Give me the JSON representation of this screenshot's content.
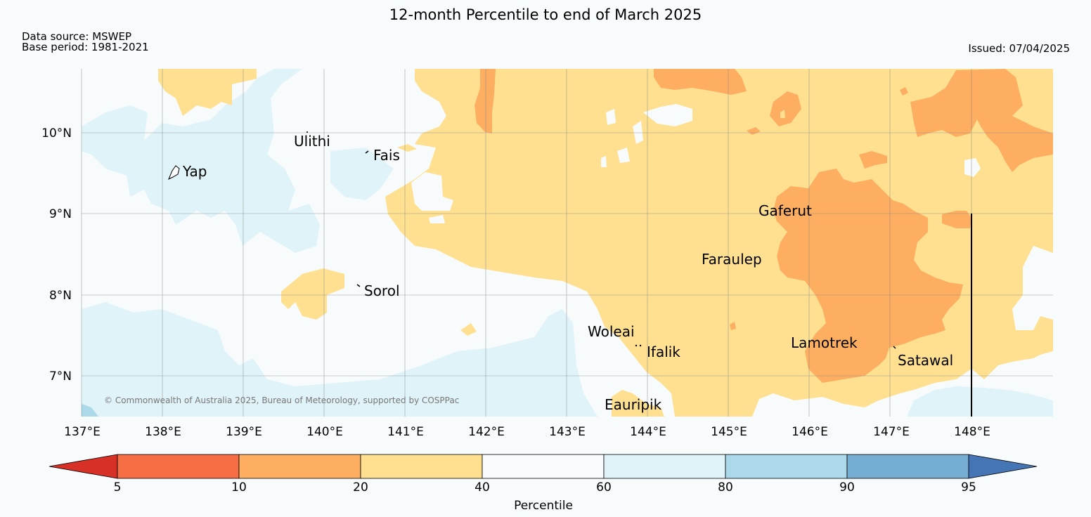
{
  "header": {
    "title": "12-month Percentile to end of March 2025",
    "data_source": "Data source: MSWEP",
    "base_period": "Base period: 1981-2021",
    "issued": "Issued: 07/04/2025"
  },
  "map": {
    "copyright": "© Commonwealth of Australia 2025, Bureau of Meteorology, supported by COSPPac",
    "lon_ticks": [
      "137°E",
      "138°E",
      "139°E",
      "140°E",
      "141°E",
      "142°E",
      "143°E",
      "144°E",
      "145°E",
      "146°E",
      "147°E",
      "148°E"
    ],
    "lat_ticks": [
      "10°N",
      "9°N",
      "8°N",
      "7°N"
    ],
    "places": [
      "Ulithi",
      "Fais",
      "Yap",
      "Gaferut",
      "Faraulep",
      "Sorol",
      "Woleai",
      "Ifalik",
      "Lamotrek",
      "Satawal",
      "Eauripik"
    ]
  },
  "legend": {
    "title": "Percentile",
    "ticks": [
      "5",
      "10",
      "20",
      "40",
      "60",
      "80",
      "90",
      "95"
    ],
    "colors": [
      "#d73027",
      "#f46d43",
      "#fdae61",
      "#fee090",
      "#f7fbfc",
      "#e0f3f8",
      "#abd9e9",
      "#74add1",
      "#4575b4"
    ]
  }
}
